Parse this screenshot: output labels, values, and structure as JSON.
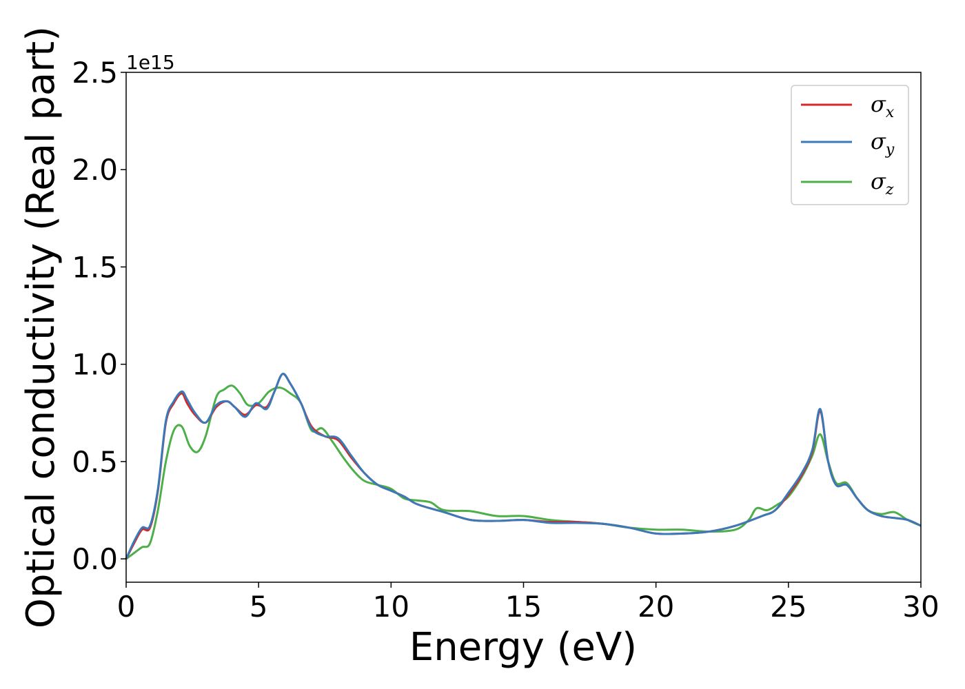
{
  "chart_data": {
    "type": "line",
    "title": "",
    "xlabel": "Energy (eV)",
    "ylabel": "Optical conductivity (Real part)",
    "y_offset_label": "1e15",
    "xlim": [
      0,
      30
    ],
    "ylim": [
      -0.12,
      2.5
    ],
    "xticks": [
      0,
      5,
      10,
      15,
      20,
      25,
      30
    ],
    "xtick_labels": [
      "0",
      "5",
      "10",
      "15",
      "20",
      "25",
      "30"
    ],
    "yticks": [
      0.0,
      0.5,
      1.0,
      1.5,
      2.0,
      2.5
    ],
    "ytick_labels": [
      "0.0",
      "0.5",
      "1.0",
      "1.5",
      "2.0",
      "2.5"
    ],
    "grid": false,
    "legend_position": "top-right",
    "series": [
      {
        "name": "σx",
        "symbol": "σ",
        "subscript": "x",
        "color": "#d62728",
        "x": [
          0,
          0.3,
          0.6,
          0.9,
          1.2,
          1.5,
          1.8,
          2.1,
          2.3,
          2.6,
          3.0,
          3.4,
          3.8,
          4.1,
          4.5,
          4.9,
          5.3,
          5.6,
          5.9,
          6.2,
          6.6,
          7.0,
          7.5,
          8.0,
          8.5,
          9.0,
          9.5,
          10.0,
          10.5,
          11.0,
          12.0,
          13.0,
          14.0,
          15.0,
          16.0,
          17.0,
          18.0,
          19.0,
          20.0,
          21.0,
          22.0,
          23.0,
          24.0,
          24.5,
          25.0,
          25.5,
          25.9,
          26.2,
          26.5,
          26.8,
          27.2,
          27.6,
          28.0,
          28.5,
          29.0,
          29.5,
          30.0
        ],
        "y": [
          0.0,
          0.08,
          0.15,
          0.16,
          0.35,
          0.7,
          0.8,
          0.85,
          0.8,
          0.74,
          0.7,
          0.78,
          0.81,
          0.78,
          0.74,
          0.79,
          0.78,
          0.86,
          0.95,
          0.9,
          0.8,
          0.68,
          0.63,
          0.61,
          0.52,
          0.44,
          0.38,
          0.35,
          0.32,
          0.28,
          0.24,
          0.2,
          0.195,
          0.2,
          0.19,
          0.19,
          0.18,
          0.16,
          0.13,
          0.13,
          0.14,
          0.17,
          0.22,
          0.25,
          0.33,
          0.43,
          0.55,
          0.76,
          0.5,
          0.38,
          0.38,
          0.31,
          0.25,
          0.22,
          0.21,
          0.2,
          0.17
        ]
      },
      {
        "name": "σy",
        "symbol": "σ",
        "subscript": "y",
        "color": "#3a7ab8",
        "x": [
          0,
          0.3,
          0.6,
          0.9,
          1.2,
          1.5,
          1.8,
          2.1,
          2.3,
          2.6,
          3.0,
          3.4,
          3.8,
          4.1,
          4.5,
          4.9,
          5.3,
          5.6,
          5.9,
          6.2,
          6.6,
          7.0,
          7.5,
          8.0,
          8.5,
          9.0,
          9.5,
          10.0,
          10.5,
          11.0,
          12.0,
          13.0,
          14.0,
          15.0,
          16.0,
          17.0,
          18.0,
          19.0,
          20.0,
          21.0,
          22.0,
          23.0,
          24.0,
          24.5,
          25.0,
          25.5,
          25.9,
          26.2,
          26.5,
          26.8,
          27.2,
          27.6,
          28.0,
          28.5,
          29.0,
          29.5,
          30.0
        ],
        "y": [
          0.0,
          0.09,
          0.16,
          0.17,
          0.36,
          0.71,
          0.81,
          0.86,
          0.82,
          0.75,
          0.7,
          0.79,
          0.81,
          0.78,
          0.73,
          0.8,
          0.77,
          0.86,
          0.95,
          0.9,
          0.8,
          0.67,
          0.63,
          0.62,
          0.53,
          0.44,
          0.38,
          0.35,
          0.32,
          0.28,
          0.24,
          0.2,
          0.195,
          0.2,
          0.185,
          0.185,
          0.18,
          0.16,
          0.13,
          0.13,
          0.14,
          0.17,
          0.22,
          0.25,
          0.34,
          0.44,
          0.56,
          0.77,
          0.5,
          0.38,
          0.38,
          0.31,
          0.25,
          0.22,
          0.21,
          0.2,
          0.17
        ]
      },
      {
        "name": "σz",
        "symbol": "σ",
        "subscript": "z",
        "color": "#4daf4a",
        "x": [
          0,
          0.3,
          0.6,
          0.9,
          1.2,
          1.5,
          1.8,
          2.1,
          2.4,
          2.7,
          3.0,
          3.4,
          3.7,
          4.0,
          4.3,
          4.6,
          5.0,
          5.4,
          5.8,
          6.2,
          6.6,
          7.0,
          7.4,
          7.8,
          8.2,
          8.6,
          9.0,
          9.5,
          10.0,
          10.5,
          11.0,
          11.5,
          12.0,
          13.0,
          14.0,
          15.0,
          16.0,
          17.0,
          18.0,
          19.0,
          20.0,
          21.0,
          22.0,
          23.0,
          23.5,
          23.8,
          24.2,
          24.6,
          25.0,
          25.5,
          25.9,
          26.2,
          26.5,
          26.8,
          27.2,
          27.6,
          28.0,
          28.5,
          29.0,
          29.5,
          30.0
        ],
        "y": [
          0.0,
          0.03,
          0.06,
          0.08,
          0.25,
          0.5,
          0.66,
          0.68,
          0.58,
          0.55,
          0.63,
          0.83,
          0.87,
          0.89,
          0.85,
          0.79,
          0.8,
          0.86,
          0.88,
          0.85,
          0.8,
          0.66,
          0.67,
          0.6,
          0.52,
          0.45,
          0.4,
          0.38,
          0.36,
          0.31,
          0.3,
          0.29,
          0.25,
          0.245,
          0.22,
          0.22,
          0.2,
          0.19,
          0.18,
          0.16,
          0.15,
          0.15,
          0.14,
          0.15,
          0.2,
          0.26,
          0.25,
          0.28,
          0.32,
          0.42,
          0.53,
          0.64,
          0.5,
          0.39,
          0.39,
          0.31,
          0.25,
          0.23,
          0.24,
          0.2,
          0.17
        ]
      }
    ]
  }
}
